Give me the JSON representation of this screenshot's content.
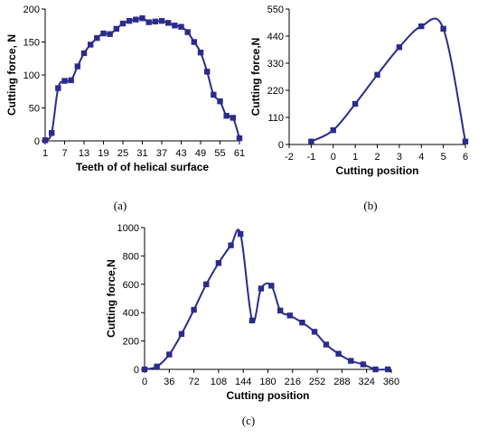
{
  "chart_data": [
    {
      "id": "a",
      "type": "line",
      "panel_label": "(a)",
      "xlabel": "Teeth of of helical surface",
      "ylabel": "Cutting force, N",
      "xlim": [
        1,
        61
      ],
      "ylim": [
        0,
        200
      ],
      "xticks": [
        1,
        7,
        13,
        19,
        25,
        31,
        37,
        43,
        49,
        55,
        61
      ],
      "yticks": [
        0,
        50,
        100,
        150,
        200
      ],
      "grid": false,
      "series": [
        {
          "color": "#2b2b8c",
          "marker": "square",
          "x": [
            1,
            3,
            5,
            7,
            9,
            11,
            13,
            15,
            17,
            19,
            21,
            23,
            25,
            27,
            29,
            31,
            33,
            35,
            37,
            39,
            41,
            43,
            45,
            47,
            49,
            51,
            53,
            55,
            57,
            59,
            61
          ],
          "y": [
            1,
            12,
            80,
            91,
            92,
            113,
            133,
            146,
            156,
            163,
            162,
            170,
            178,
            182,
            184,
            186,
            180,
            181,
            182,
            179,
            175,
            173,
            165,
            150,
            134,
            105,
            70,
            60,
            38,
            35,
            4
          ]
        }
      ]
    },
    {
      "id": "b",
      "type": "line",
      "panel_label": "(b)",
      "xlabel": "Cutting position",
      "ylabel": "Cutting force,N",
      "xlim": [
        -2,
        6
      ],
      "ylim": [
        0,
        550
      ],
      "xticks": [
        -2,
        -1,
        0,
        1,
        2,
        3,
        4,
        5,
        6
      ],
      "yticks": [
        0,
        110,
        220,
        330,
        440,
        550
      ],
      "grid": false,
      "series": [
        {
          "color": "#2b2b8c",
          "marker": "square",
          "x": [
            -1,
            0,
            1,
            2,
            3,
            4,
            5,
            6
          ],
          "y": [
            12,
            58,
            165,
            283,
            395,
            480,
            470,
            12
          ]
        }
      ]
    },
    {
      "id": "c",
      "type": "line",
      "panel_label": "(c)",
      "xlabel": "Cutting position",
      "ylabel": "Cutting force,N",
      "xlim": [
        0,
        360
      ],
      "ylim": [
        0,
        1000
      ],
      "xticks": [
        0,
        36,
        72,
        108,
        144,
        180,
        216,
        252,
        288,
        324,
        360
      ],
      "yticks": [
        0,
        200,
        400,
        600,
        800,
        1000
      ],
      "grid": false,
      "series": [
        {
          "color": "#2b2b8c",
          "marker": "square",
          "x": [
            0,
            18,
            36,
            54,
            72,
            90,
            108,
            126,
            140,
            157,
            170,
            185,
            198,
            212,
            230,
            248,
            265,
            283,
            301,
            319,
            337,
            355
          ],
          "y": [
            0,
            20,
            105,
            250,
            420,
            600,
            750,
            875,
            955,
            345,
            570,
            590,
            415,
            380,
            330,
            265,
            175,
            110,
            60,
            35,
            0,
            0
          ]
        }
      ]
    }
  ]
}
